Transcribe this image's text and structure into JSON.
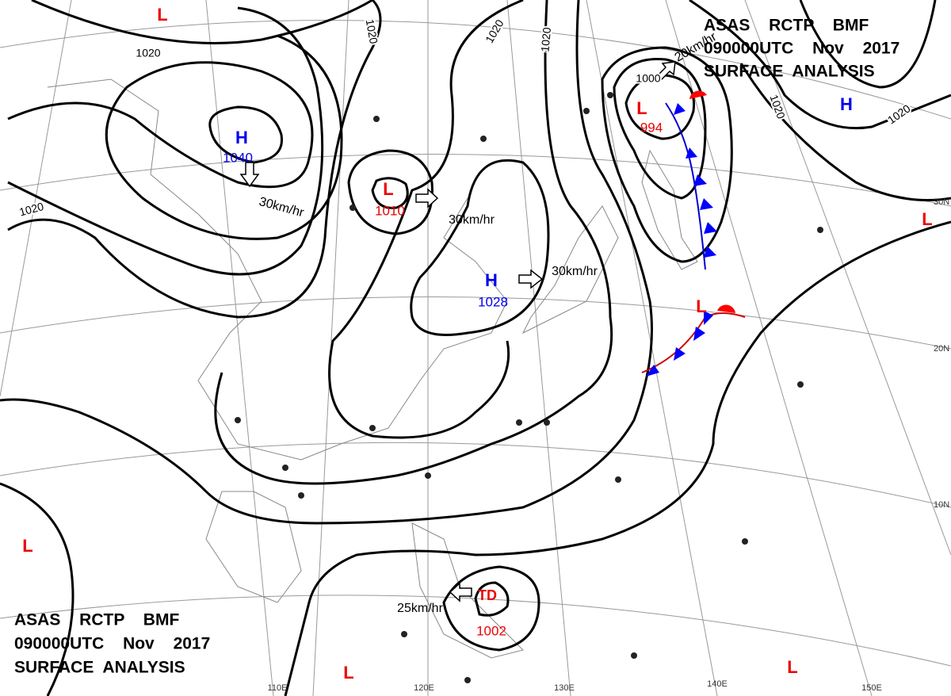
{
  "header_top": [
    "ASAS RCTP BMF",
    "090000UTC Nov 2017",
    "SURFACE ANALYSIS"
  ],
  "header_bottom": [
    "ASAS RCTP BMF",
    "090000UTC Nov 2017",
    "SURFACE ANALYSIS"
  ],
  "systems": [
    {
      "symbol": "H",
      "pressure": "1040"
    },
    {
      "symbol": "L",
      "pressure": "1010"
    },
    {
      "symbol": "H",
      "pressure": "1028"
    },
    {
      "symbol": "L",
      "pressure": "994"
    },
    {
      "symbol": "H"
    },
    {
      "symbol": "L"
    },
    {
      "symbol": "L"
    },
    {
      "symbol": "L"
    },
    {
      "symbol": "L"
    },
    {
      "symbol": "L"
    },
    {
      "symbol": "L"
    },
    {
      "symbol": "TD",
      "pressure": "1002"
    }
  ],
  "isobar_labels": [
    "1020",
    "1020",
    "1020",
    "1020",
    "1020",
    "1020",
    "1020",
    "1000"
  ],
  "motion_labels": [
    "30km/hr",
    "30km/hr",
    "30km/hr",
    "25km/hr",
    "20km/hr"
  ],
  "latitude_labels": [
    "30N",
    "20N",
    "10N"
  ],
  "longitude_labels": [
    "110E",
    "120E",
    "130E",
    "140E",
    "150E"
  ]
}
